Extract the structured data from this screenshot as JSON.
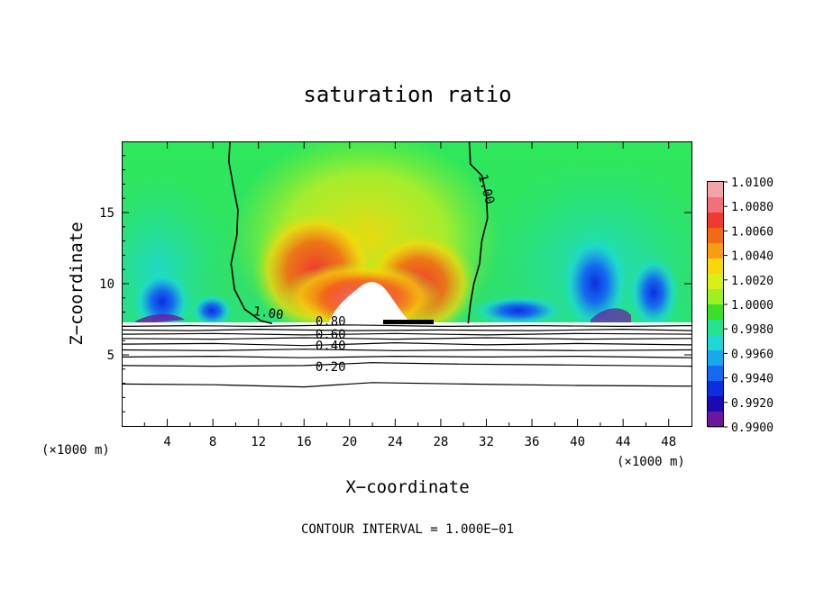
{
  "chart_data": {
    "type": "heatmap",
    "title": "saturation ratio",
    "xlabel": "X−coordinate",
    "ylabel": "Z−coordinate",
    "x_unit": "(×1000 m)",
    "y_unit": "(×1000 m)",
    "xlim": [
      0,
      50
    ],
    "ylim": [
      0,
      20
    ],
    "xticks": [
      4,
      8,
      12,
      16,
      20,
      24,
      28,
      32,
      36,
      40,
      44,
      48
    ],
    "yticks": [
      5,
      10,
      15
    ],
    "xtick_labels": [
      "4",
      "8",
      "12",
      "16",
      "20",
      "24",
      "28",
      "32",
      "36",
      "40",
      "44",
      "48"
    ],
    "ytick_labels": [
      "5",
      "10",
      "15"
    ],
    "cloud_base_z": 7.2,
    "footer": "CONTOUR INTERVAL = 1.000E−01",
    "colorbar": {
      "min": 0.99,
      "max": 1.01,
      "labels": [
        "1.0100",
        "1.0080",
        "1.0060",
        "1.0040",
        "1.0020",
        "1.0000",
        "0.9980",
        "0.9960",
        "0.9940",
        "0.9920",
        "0.9900"
      ],
      "colors": [
        "#f4a3a8",
        "#f27078",
        "#ef3a30",
        "#f36a14",
        "#fa9c10",
        "#f6d80c",
        "#d6f018",
        "#9ef020",
        "#38e028",
        "#22e490",
        "#1ed8d4",
        "#18a8f0",
        "#1468f2",
        "#0c2ee0",
        "#1a0ab0",
        "#6a16a0"
      ]
    },
    "contours": [
      {
        "label": "1.00",
        "points": [
          [
            9.5,
            20
          ],
          [
            9.4,
            18.6
          ],
          [
            9.8,
            16.8
          ],
          [
            10.2,
            15.2
          ],
          [
            10.1,
            13.4
          ],
          [
            9.6,
            11.4
          ],
          [
            9.9,
            9.6
          ],
          [
            10.8,
            8.2
          ],
          [
            12.2,
            7.4
          ],
          [
            13.2,
            7.2
          ]
        ]
      },
      {
        "label": "1.00",
        "points": [
          [
            30.5,
            20
          ],
          [
            30.6,
            18.4
          ],
          [
            31.6,
            17.6
          ],
          [
            32.0,
            16.2
          ],
          [
            32.1,
            14.6
          ],
          [
            31.6,
            13.0
          ],
          [
            31.4,
            11.4
          ],
          [
            30.9,
            10.0
          ],
          [
            30.6,
            8.6
          ],
          [
            30.4,
            7.2
          ]
        ]
      },
      {
        "label": "0.80",
        "points": [
          [
            0,
            7.0
          ],
          [
            6,
            7.05
          ],
          [
            12,
            7.0
          ],
          [
            20,
            7.1
          ],
          [
            28,
            7.0
          ],
          [
            36,
            7.05
          ],
          [
            44,
            7.0
          ],
          [
            50,
            7.05
          ]
        ]
      },
      {
        "label": "",
        "points": [
          [
            0,
            6.75
          ],
          [
            6,
            6.7
          ],
          [
            12,
            6.8
          ],
          [
            20,
            6.7
          ],
          [
            28,
            6.75
          ],
          [
            36,
            6.7
          ],
          [
            44,
            6.8
          ],
          [
            50,
            6.7
          ]
        ]
      },
      {
        "label": "0.60",
        "points": [
          [
            0,
            6.45
          ],
          [
            8,
            6.5
          ],
          [
            16,
            6.4
          ],
          [
            24,
            6.5
          ],
          [
            32,
            6.4
          ],
          [
            40,
            6.5
          ],
          [
            50,
            6.45
          ]
        ]
      },
      {
        "label": "",
        "points": [
          [
            0,
            6.15
          ],
          [
            8,
            6.1
          ],
          [
            16,
            6.2
          ],
          [
            24,
            6.1
          ],
          [
            32,
            6.2
          ],
          [
            40,
            6.1
          ],
          [
            50,
            6.15
          ]
        ]
      },
      {
        "label": "0.40",
        "points": [
          [
            0,
            5.75
          ],
          [
            8,
            5.8
          ],
          [
            16,
            5.65
          ],
          [
            24,
            5.85
          ],
          [
            32,
            5.7
          ],
          [
            40,
            5.8
          ],
          [
            50,
            5.7
          ]
        ]
      },
      {
        "label": "",
        "points": [
          [
            0,
            5.35
          ],
          [
            8,
            5.3
          ],
          [
            16,
            5.4
          ],
          [
            24,
            5.3
          ],
          [
            32,
            5.35
          ],
          [
            40,
            5.3
          ],
          [
            50,
            5.35
          ]
        ]
      },
      {
        "label": "",
        "points": [
          [
            0,
            4.85
          ],
          [
            8,
            4.9
          ],
          [
            16,
            4.8
          ],
          [
            24,
            4.9
          ],
          [
            32,
            4.85
          ],
          [
            40,
            4.9
          ],
          [
            50,
            4.8
          ]
        ]
      },
      {
        "label": "0.20",
        "points": [
          [
            0,
            4.25
          ],
          [
            8,
            4.2
          ],
          [
            16,
            4.25
          ],
          [
            22,
            4.45
          ],
          [
            30,
            4.35
          ],
          [
            38,
            4.3
          ],
          [
            50,
            4.2
          ]
        ]
      },
      {
        "label": "",
        "points": [
          [
            0,
            2.95
          ],
          [
            8,
            2.9
          ],
          [
            16,
            2.75
          ],
          [
            22,
            3.05
          ],
          [
            30,
            2.95
          ],
          [
            40,
            2.85
          ],
          [
            50,
            2.8
          ]
        ]
      }
    ]
  }
}
